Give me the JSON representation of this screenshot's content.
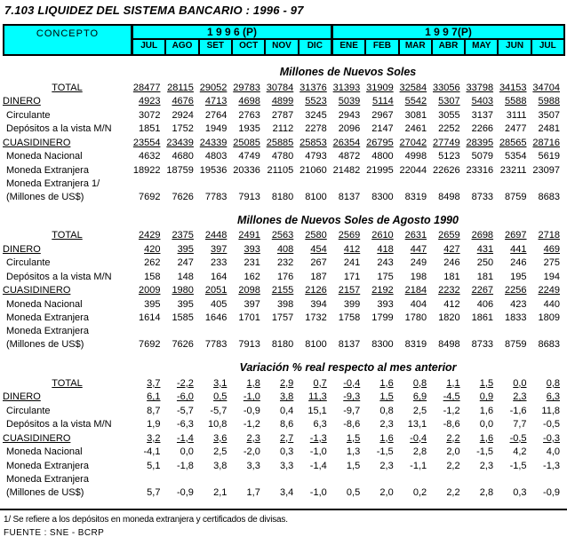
{
  "title": "7.103  LIQUIDEZ DEL SISTEMA BANCARIO : 1996 - 97",
  "colors": {
    "header_bg": "#00FFFF",
    "border": "#000000",
    "text": "#000000",
    "page_bg": "#FFFFFF"
  },
  "header": {
    "concepto": "CONCEPTO",
    "year_groups": [
      {
        "label": "1 9 9 6 (P)",
        "months": [
          "JUL",
          "AGO",
          "SET",
          "OCT",
          "NOV",
          "DIC"
        ]
      },
      {
        "label": "1 9 9 7(P)",
        "months": [
          "ENE",
          "FEB",
          "MAR",
          "ABR",
          "MAY",
          "JUN",
          "JUL"
        ]
      }
    ]
  },
  "sections": [
    {
      "heading": "Millones de Nuevos Soles",
      "rows": [
        {
          "label": "TOTAL",
          "style": "total",
          "underline": true,
          "values": [
            "28477",
            "28115",
            "29052",
            "29783",
            "30784",
            "31376",
            "31393",
            "31909",
            "32584",
            "33056",
            "33798",
            "34153",
            "34704"
          ]
        },
        {
          "label": "DINERO",
          "style": "major",
          "underline": true,
          "values": [
            "4923",
            "4676",
            "4713",
            "4698",
            "4899",
            "5523",
            "5039",
            "5114",
            "5542",
            "5307",
            "5403",
            "5588",
            "5988"
          ]
        },
        {
          "label": "Circulante",
          "style": "sub",
          "underline": false,
          "values": [
            "3072",
            "2924",
            "2764",
            "2763",
            "2787",
            "3245",
            "2943",
            "2967",
            "3081",
            "3055",
            "3137",
            "3111",
            "3507"
          ]
        },
        {
          "label": "Depósitos a la vista M/N",
          "style": "sub",
          "underline": false,
          "values": [
            "1851",
            "1752",
            "1949",
            "1935",
            "2112",
            "2278",
            "2096",
            "2147",
            "2461",
            "2252",
            "2266",
            "2477",
            "2481"
          ]
        },
        {
          "label": "CUASIDINERO",
          "style": "major",
          "underline": true,
          "values": [
            "23554",
            "23439",
            "24339",
            "25085",
            "25885",
            "25853",
            "26354",
            "26795",
            "27042",
            "27749",
            "28395",
            "28565",
            "28716"
          ]
        },
        {
          "label": "Moneda Nacional",
          "style": "sub",
          "underline": false,
          "values": [
            "4632",
            "4680",
            "4803",
            "4749",
            "4780",
            "4793",
            "4872",
            "4800",
            "4998",
            "5123",
            "5079",
            "5354",
            "5619"
          ]
        },
        {
          "label": "Moneda Extranjera",
          "style": "sub",
          "underline": false,
          "values": [
            "18922",
            "18759",
            "19536",
            "20336",
            "21105",
            "21060",
            "21482",
            "21995",
            "22044",
            "22626",
            "23316",
            "23211",
            "23097"
          ]
        },
        {
          "label": "Moneda Extranjera 1/",
          "label2": "(Millones de US$)",
          "style": "sub2",
          "underline": false,
          "values": [
            "7692",
            "7626",
            "7783",
            "7913",
            "8180",
            "8100",
            "8137",
            "8300",
            "8319",
            "8498",
            "8733",
            "8759",
            "8683"
          ]
        }
      ]
    },
    {
      "heading": "Millones de Nuevos Soles de Agosto 1990",
      "rows": [
        {
          "label": "TOTAL",
          "style": "total",
          "underline": true,
          "values": [
            "2429",
            "2375",
            "2448",
            "2491",
            "2563",
            "2580",
            "2569",
            "2610",
            "2631",
            "2659",
            "2698",
            "2697",
            "2718"
          ]
        },
        {
          "label": "DINERO",
          "style": "major",
          "underline": true,
          "values": [
            "420",
            "395",
            "397",
            "393",
            "408",
            "454",
            "412",
            "418",
            "447",
            "427",
            "431",
            "441",
            "469"
          ]
        },
        {
          "label": "Circulante",
          "style": "sub",
          "underline": false,
          "values": [
            "262",
            "247",
            "233",
            "231",
            "232",
            "267",
            "241",
            "243",
            "249",
            "246",
            "250",
            "246",
            "275"
          ]
        },
        {
          "label": "Depósitos a la vista M/N",
          "style": "sub",
          "underline": false,
          "values": [
            "158",
            "148",
            "164",
            "162",
            "176",
            "187",
            "171",
            "175",
            "198",
            "181",
            "181",
            "195",
            "194"
          ]
        },
        {
          "label": "CUASIDINERO",
          "style": "major",
          "underline": true,
          "values": [
            "2009",
            "1980",
            "2051",
            "2098",
            "2155",
            "2126",
            "2157",
            "2192",
            "2184",
            "2232",
            "2267",
            "2256",
            "2249"
          ]
        },
        {
          "label": "Moneda Nacional",
          "style": "sub",
          "underline": false,
          "values": [
            "395",
            "395",
            "405",
            "397",
            "398",
            "394",
            "399",
            "393",
            "404",
            "412",
            "406",
            "423",
            "440"
          ]
        },
        {
          "label": "Moneda Extranjera",
          "style": "sub",
          "underline": false,
          "values": [
            "1614",
            "1585",
            "1646",
            "1701",
            "1757",
            "1732",
            "1758",
            "1799",
            "1780",
            "1820",
            "1861",
            "1833",
            "1809"
          ]
        },
        {
          "label": "Moneda Extranjera",
          "label2": "(Millones de US$)",
          "style": "sub2",
          "underline": false,
          "values": [
            "7692",
            "7626",
            "7783",
            "7913",
            "8180",
            "8100",
            "8137",
            "8300",
            "8319",
            "8498",
            "8733",
            "8759",
            "8683"
          ]
        }
      ]
    },
    {
      "heading": "Variación % real respecto al mes anterior",
      "rows": [
        {
          "label": "TOTAL",
          "style": "total",
          "underline": true,
          "values": [
            "3,7",
            "-2,2",
            "3,1",
            "1,8",
            "2,9",
            "0,7",
            "-0,4",
            "1,6",
            "0,8",
            "1,1",
            "1,5",
            "0,0",
            "0,8"
          ]
        },
        {
          "label": "DINERO",
          "style": "major",
          "underline": true,
          "values": [
            "6,1",
            "-6,0",
            "0,5",
            "-1,0",
            "3,8",
            "11,3",
            "-9,3",
            "1,5",
            "6,9",
            "-4,5",
            "0,9",
            "2,3",
            "6,3"
          ]
        },
        {
          "label": "Circulante",
          "style": "sub",
          "underline": false,
          "values": [
            "8,7",
            "-5,7",
            "-5,7",
            "-0,9",
            "0,4",
            "15,1",
            "-9,7",
            "0,8",
            "2,5",
            "-1,2",
            "1,6",
            "-1,6",
            "11,8"
          ]
        },
        {
          "label": "Depósitos a la vista M/N",
          "style": "sub",
          "underline": false,
          "values": [
            "1,9",
            "-6,3",
            "10,8",
            "-1,2",
            "8,6",
            "6,3",
            "-8,6",
            "2,3",
            "13,1",
            "-8,6",
            "0,0",
            "7,7",
            "-0,5"
          ]
        },
        {
          "label": "CUASIDINERO",
          "style": "major",
          "underline": true,
          "values": [
            "3,2",
            "-1,4",
            "3,6",
            "2,3",
            "2,7",
            "-1,3",
            "1,5",
            "1,6",
            "-0,4",
            "2,2",
            "1,6",
            "-0,5",
            "-0,3"
          ]
        },
        {
          "label": "Moneda Nacional",
          "style": "sub",
          "underline": false,
          "values": [
            "-4,1",
            "0,0",
            "2,5",
            "-2,0",
            "0,3",
            "-1,0",
            "1,3",
            "-1,5",
            "2,8",
            "2,0",
            "-1,5",
            "4,2",
            "4,0"
          ]
        },
        {
          "label": "Moneda Extranjera",
          "style": "sub",
          "underline": false,
          "values": [
            "5,1",
            "-1,8",
            "3,8",
            "3,3",
            "3,3",
            "-1,4",
            "1,5",
            "2,3",
            "-1,1",
            "2,2",
            "2,3",
            "-1,5",
            "-1,3"
          ]
        },
        {
          "label": "Moneda Extranjera",
          "label2": "(Millones de US$)",
          "style": "sub2",
          "underline": false,
          "values": [
            "5,7",
            "-0,9",
            "2,1",
            "1,7",
            "3,4",
            "-1,0",
            "0,5",
            "2,0",
            "0,2",
            "2,2",
            "2,8",
            "0,3",
            "-0,9"
          ]
        }
      ]
    }
  ],
  "footnote": "1/ Se refiere a los depósitos en moneda extranjera y certificados de divisas.",
  "source": "FUENTE : SNE - BCRP"
}
